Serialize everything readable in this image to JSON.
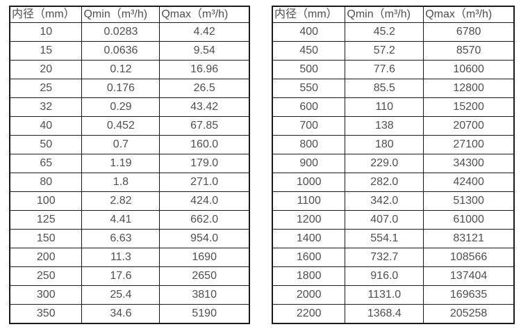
{
  "colors": {
    "background": "#ffffff",
    "border": "#1a1a1a",
    "text": "#4f4f4f"
  },
  "tables": [
    {
      "name": "flow-table-dn10-350",
      "headers": [
        "内径（mm）",
        "Qmin（m³/h)",
        "Qmax（m³/h)"
      ],
      "rows": [
        [
          "10",
          "0.0283",
          "4.42"
        ],
        [
          "15",
          "0.0636",
          "9.54"
        ],
        [
          "20",
          "0.12",
          "16.96"
        ],
        [
          "25",
          "0.176",
          "26.5"
        ],
        [
          "32",
          "0.29",
          "43.42"
        ],
        [
          "40",
          "0.452",
          "67.85"
        ],
        [
          "50",
          "0.7",
          "160.0"
        ],
        [
          "65",
          "1.19",
          "179.0"
        ],
        [
          "80",
          "1.8",
          "271.0"
        ],
        [
          "100",
          "2.82",
          "424.0"
        ],
        [
          "125",
          "4.41",
          "662.0"
        ],
        [
          "150",
          "6.63",
          "954.0"
        ],
        [
          "200",
          "11.3",
          "1690"
        ],
        [
          "250",
          "17.6",
          "2650"
        ],
        [
          "300",
          "25.4",
          "3810"
        ],
        [
          "350",
          "34.6",
          "5190"
        ]
      ]
    },
    {
      "name": "flow-table-dn400-2200",
      "headers": [
        "内径（mm）",
        "Qmin（m³/h)",
        "Qmax（m³/h)"
      ],
      "rows": [
        [
          "400",
          "45.2",
          "6780"
        ],
        [
          "450",
          "57.2",
          "8570"
        ],
        [
          "500",
          "77.6",
          "10600"
        ],
        [
          "550",
          "85.5",
          "12800"
        ],
        [
          "600",
          "110",
          "15200"
        ],
        [
          "700",
          "138",
          "20700"
        ],
        [
          "800",
          "180",
          "27100"
        ],
        [
          "900",
          "229.0",
          "34300"
        ],
        [
          "1000",
          "282.0",
          "42400"
        ],
        [
          "1100",
          "342.0",
          "51300"
        ],
        [
          "1200",
          "407.0",
          "61000"
        ],
        [
          "1400",
          "554.1",
          "83121"
        ],
        [
          "1600",
          "732.7",
          "108566"
        ],
        [
          "1800",
          "916.0",
          "137404"
        ],
        [
          "2000",
          "1131.0",
          "169635"
        ],
        [
          "2200",
          "1368.4",
          "205258"
        ]
      ]
    }
  ]
}
